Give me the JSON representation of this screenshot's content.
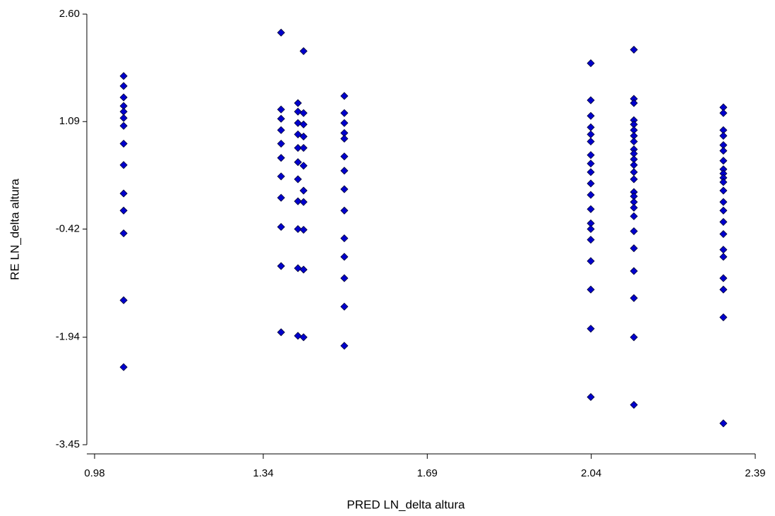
{
  "chart_data": {
    "type": "scatter",
    "xlabel": "PRED LN_delta altura",
    "ylabel": "RE LN_delta altura",
    "color": "#0000cd",
    "x": [
      1.042,
      1.042,
      1.042,
      1.042,
      1.042,
      1.042,
      1.042,
      1.042,
      1.042,
      1.042,
      1.042,
      1.042,
      1.042,
      1.042,
      1.378,
      1.378,
      1.378,
      1.378,
      1.378,
      1.378,
      1.378,
      1.378,
      1.378,
      1.378,
      1.378,
      1.414,
      1.414,
      1.414,
      1.414,
      1.414,
      1.414,
      1.414,
      1.414,
      1.414,
      1.414,
      1.414,
      1.426,
      1.426,
      1.426,
      1.426,
      1.426,
      1.426,
      1.426,
      1.426,
      1.426,
      1.426,
      1.426,
      1.513,
      1.513,
      1.513,
      1.513,
      1.513,
      1.513,
      1.513,
      1.513,
      1.513,
      1.513,
      1.513,
      1.513,
      1.513,
      1.513,
      2.039,
      2.039,
      2.039,
      2.039,
      2.039,
      2.039,
      2.039,
      2.039,
      2.039,
      2.039,
      2.039,
      2.039,
      2.039,
      2.039,
      2.039,
      2.039,
      2.039,
      2.039,
      2.039,
      2.131,
      2.131,
      2.131,
      2.131,
      2.131,
      2.131,
      2.131,
      2.131,
      2.131,
      2.131,
      2.131,
      2.131,
      2.131,
      2.131,
      2.131,
      2.131,
      2.131,
      2.131,
      2.131,
      2.131,
      2.131,
      2.131,
      2.131,
      2.131,
      2.131,
      2.322,
      2.322,
      2.322,
      2.322,
      2.322,
      2.322,
      2.322,
      2.322,
      2.322,
      2.322,
      2.322,
      2.322,
      2.322,
      2.322,
      2.322,
      2.322,
      2.322,
      2.322,
      2.322,
      2.322,
      2.322,
      2.322
    ],
    "values": [
      1.73,
      1.59,
      1.43,
      1.31,
      1.23,
      1.14,
      1.03,
      0.78,
      0.48,
      0.08,
      -0.16,
      -0.48,
      -1.42,
      -2.36,
      2.34,
      1.26,
      1.13,
      0.97,
      0.78,
      0.58,
      0.32,
      0.02,
      -0.39,
      -0.94,
      -1.87,
      1.35,
      1.23,
      1.07,
      0.91,
      0.72,
      0.52,
      0.28,
      -0.03,
      -0.42,
      -0.97,
      -1.92,
      2.08,
      1.21,
      1.05,
      0.88,
      0.72,
      0.47,
      0.12,
      -0.04,
      -0.43,
      -0.99,
      -1.94,
      1.45,
      1.21,
      1.07,
      0.93,
      0.85,
      0.6,
      0.4,
      0.14,
      -0.16,
      -0.55,
      -0.81,
      -1.11,
      -1.51,
      -2.06,
      1.91,
      1.39,
      1.17,
      1.01,
      0.91,
      0.81,
      0.62,
      0.5,
      0.38,
      0.22,
      0.06,
      -0.14,
      -0.34,
      -0.42,
      -0.57,
      -0.87,
      -1.27,
      -1.82,
      -2.78,
      2.1,
      1.41,
      1.35,
      1.11,
      1.05,
      0.97,
      0.89,
      0.81,
      0.7,
      0.64,
      0.56,
      0.48,
      0.38,
      0.28,
      0.1,
      0.04,
      -0.04,
      -0.12,
      -0.24,
      -0.45,
      -0.69,
      -1.01,
      -1.39,
      -1.94,
      -2.89,
      1.29,
      1.21,
      0.97,
      0.89,
      0.76,
      0.68,
      0.54,
      0.42,
      0.36,
      0.3,
      0.24,
      0.12,
      -0.04,
      -0.16,
      -0.32,
      -0.49,
      -0.71,
      -0.81,
      -1.11,
      -1.27,
      -1.66,
      -3.15
    ],
    "xlim": [
      0.98,
      2.39
    ],
    "xticks": [
      0.98,
      1.34,
      1.69,
      2.04,
      2.39
    ],
    "ylim": [
      -3.45,
      2.6
    ],
    "yticks": [
      -3.45,
      -1.94,
      -0.42,
      1.09,
      {
        "value": 2.6,
        "label": "2.60"
      }
    ]
  }
}
